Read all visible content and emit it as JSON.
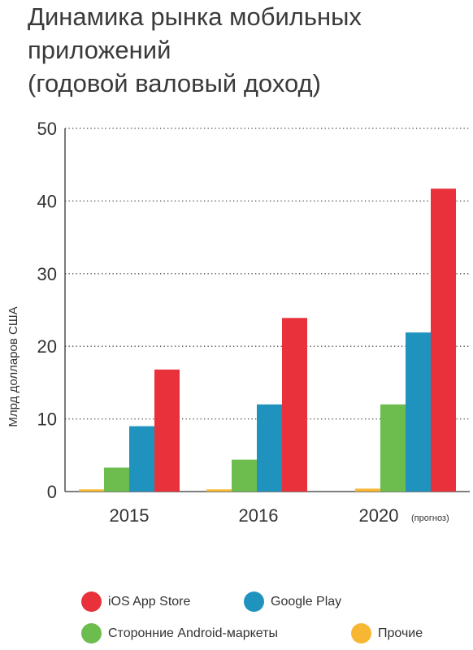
{
  "title_lines": [
    "Динамика рынка мобильных",
    "приложений",
    "(годовой валовый доход)"
  ],
  "colors": {
    "ios": "#e8313a",
    "google": "#1f93be",
    "android": "#6cbd4e",
    "other": "#f7b733"
  },
  "chart_data": {
    "type": "bar",
    "title": "Динамика рынка мобильных приложений (годовой валовый доход)",
    "ylabel": "Млрд долларов США",
    "xlabel": "",
    "ylim": [
      0,
      50
    ],
    "yticks": [
      "0",
      "10",
      "20",
      "30",
      "40",
      "50"
    ],
    "grid": "horizontal-dotted",
    "categories": [
      "2015",
      "2016",
      "2020"
    ],
    "category_notes": [
      "",
      "",
      "(прогноз)"
    ],
    "series": [
      {
        "name": "Прочие",
        "key": "other",
        "values": [
          0.3,
          0.3,
          0.4
        ]
      },
      {
        "name": "Сторонние Android-маркеты",
        "key": "android",
        "values": [
          3.3,
          4.4,
          12.0
        ]
      },
      {
        "name": "Google Play",
        "key": "google",
        "values": [
          9.0,
          12.0,
          21.9
        ]
      },
      {
        "name": "iOS App Store",
        "key": "ios",
        "values": [
          16.8,
          23.9,
          41.7
        ]
      }
    ],
    "legend": [
      {
        "name": "iOS App Store",
        "key": "ios"
      },
      {
        "name": "Google Play",
        "key": "google"
      },
      {
        "name": "Сторонние Android-маркеты",
        "key": "android"
      },
      {
        "name": "Прочие",
        "key": "other"
      }
    ],
    "legend_position": "bottom"
  }
}
